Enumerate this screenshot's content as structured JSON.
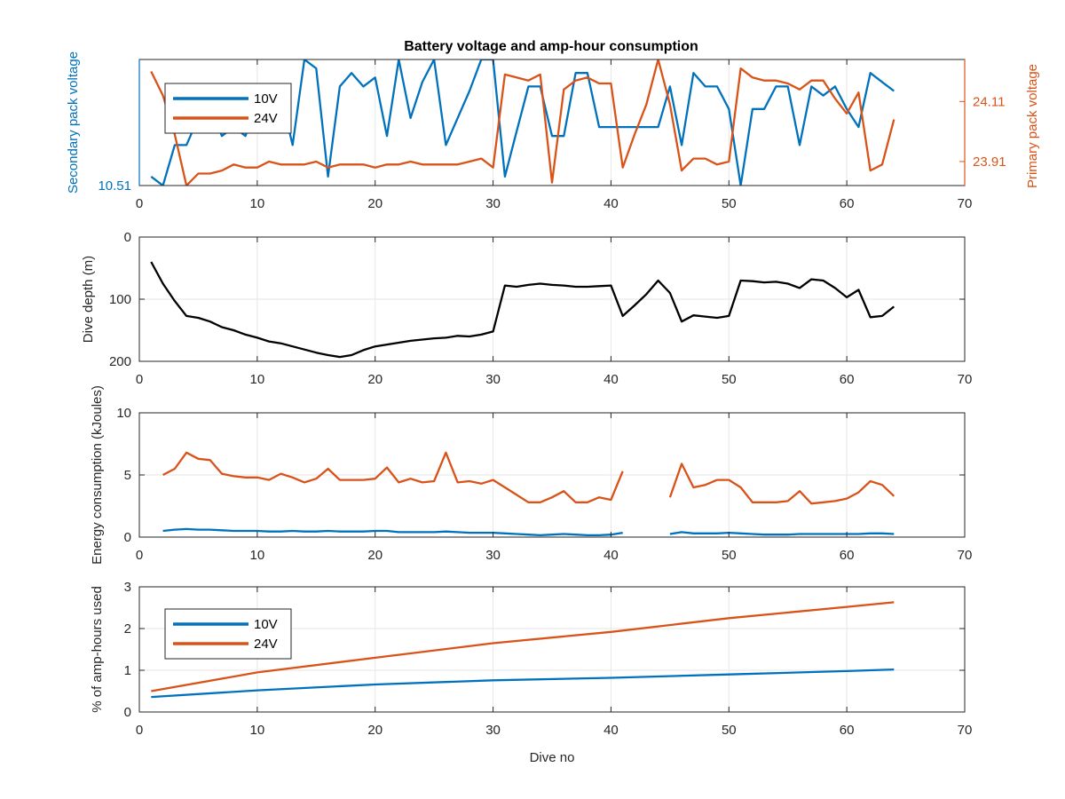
{
  "figure": {
    "title": "Battery voltage and amp-hour consumption"
  },
  "colors": {
    "blue": "#0072BD",
    "orange": "#D95319",
    "black": "#000000",
    "grid": "#e6e6e6",
    "axis": "#262626"
  },
  "chart_data": [
    {
      "type": "line",
      "title": "Battery voltage and amp-hour consumption",
      "xlabel": "",
      "ylabel": "Secondary pack voltage",
      "ylabel_right": "Primary pack voltage",
      "xlim": [
        0,
        70
      ],
      "xticks": [
        0,
        10,
        20,
        30,
        40,
        50,
        60,
        70
      ],
      "ylim_left": [
        10.51,
        10.79
      ],
      "yticks_left": [
        10.51
      ],
      "ylim_right": [
        23.83,
        24.25
      ],
      "yticks_right": [
        23.91,
        24.11
      ],
      "grid": true,
      "legend": {
        "position": "top-left",
        "entries": [
          "10V",
          "24V"
        ]
      },
      "series": [
        {
          "name": "10V",
          "axis": "left",
          "x": [
            1,
            2,
            3,
            4,
            5,
            6,
            7,
            8,
            9,
            10,
            11,
            12,
            13,
            14,
            15,
            16,
            17,
            18,
            19,
            20,
            21,
            22,
            23,
            24,
            25,
            26,
            27,
            28,
            29,
            30,
            31,
            32,
            33,
            34,
            35,
            36,
            37,
            38,
            39,
            40,
            41,
            42,
            43,
            44,
            45,
            46,
            47,
            48,
            49,
            50,
            51,
            52,
            53,
            54,
            55,
            56,
            57,
            58,
            59,
            60,
            61,
            62,
            63,
            64
          ],
          "y": [
            10.53,
            10.51,
            10.6,
            10.6,
            10.66,
            10.69,
            10.62,
            10.64,
            10.62,
            10.7,
            10.73,
            10.71,
            10.6,
            10.79,
            10.77,
            10.53,
            10.73,
            10.76,
            10.73,
            10.75,
            10.62,
            10.79,
            10.66,
            10.74,
            10.79,
            10.6,
            10.66,
            10.72,
            10.79,
            10.79,
            10.53,
            10.63,
            10.73,
            10.73,
            10.62,
            10.62,
            10.76,
            10.76,
            10.64,
            10.64,
            10.64,
            10.64,
            10.64,
            10.64,
            10.73,
            10.6,
            10.76,
            10.73,
            10.73,
            10.68,
            10.51,
            10.68,
            10.68,
            10.73,
            10.73,
            10.6,
            10.73,
            10.71,
            10.73,
            10.68,
            10.64,
            10.76,
            10.74,
            10.72
          ]
        },
        {
          "name": "24V",
          "axis": "right",
          "x": [
            1,
            2,
            3,
            4,
            5,
            6,
            7,
            8,
            9,
            10,
            11,
            12,
            13,
            14,
            15,
            16,
            17,
            18,
            19,
            20,
            21,
            22,
            23,
            24,
            25,
            26,
            27,
            28,
            29,
            30,
            31,
            32,
            33,
            34,
            35,
            36,
            37,
            38,
            39,
            40,
            41,
            42,
            43,
            44,
            45,
            46,
            47,
            48,
            49,
            50,
            51,
            52,
            53,
            54,
            55,
            56,
            57,
            58,
            59,
            60,
            61,
            62,
            63,
            64
          ],
          "y": [
            24.21,
            24.13,
            24.0,
            23.83,
            23.87,
            23.87,
            23.88,
            23.9,
            23.89,
            23.89,
            23.91,
            23.9,
            23.9,
            23.9,
            23.91,
            23.89,
            23.9,
            23.9,
            23.9,
            23.89,
            23.9,
            23.9,
            23.91,
            23.9,
            23.9,
            23.9,
            23.9,
            23.91,
            23.92,
            23.89,
            24.2,
            24.19,
            24.18,
            24.2,
            23.84,
            24.15,
            24.18,
            24.19,
            24.17,
            24.17,
            23.89,
            24.0,
            24.1,
            24.25,
            24.1,
            23.88,
            23.92,
            23.92,
            23.9,
            23.91,
            24.22,
            24.19,
            24.18,
            24.18,
            24.17,
            24.15,
            24.18,
            24.18,
            24.12,
            24.07,
            24.14,
            23.88,
            23.9,
            24.05
          ]
        }
      ]
    },
    {
      "type": "line",
      "xlabel": "",
      "ylabel": "Dive depth (m)",
      "xlim": [
        0,
        70
      ],
      "xticks": [
        0,
        10,
        20,
        30,
        40,
        50,
        60,
        70
      ],
      "ylim": [
        200,
        0
      ],
      "yticks": [
        0,
        100,
        200
      ],
      "y_reversed": true,
      "grid": true,
      "series": [
        {
          "x": [
            1,
            2,
            3,
            4,
            5,
            6,
            7,
            8,
            9,
            10,
            11,
            12,
            13,
            14,
            15,
            16,
            17,
            18,
            19,
            20,
            21,
            22,
            23,
            24,
            25,
            26,
            27,
            28,
            29,
            30,
            31,
            32,
            33,
            34,
            35,
            36,
            37,
            38,
            39,
            40,
            41,
            42,
            43,
            44,
            45,
            46,
            47,
            48,
            49,
            50,
            51,
            52,
            53,
            54,
            55,
            56,
            57,
            58,
            59,
            60,
            61,
            62,
            63,
            64
          ],
          "y": [
            40,
            75,
            103,
            127,
            130,
            136,
            145,
            150,
            157,
            162,
            168,
            171,
            176,
            181,
            186,
            190,
            193,
            190,
            182,
            176,
            173,
            170,
            167,
            165,
            163,
            162,
            159,
            160,
            157,
            152,
            78,
            80,
            77,
            75,
            77,
            78,
            80,
            80,
            79,
            78,
            127,
            110,
            92,
            70,
            90,
            136,
            126,
            128,
            130,
            127,
            70,
            71,
            73,
            72,
            75,
            82,
            68,
            70,
            82,
            97,
            85,
            129,
            127,
            112
          ]
        }
      ]
    },
    {
      "type": "line",
      "xlabel": "",
      "ylabel": "Energy consumption (kJoules)",
      "xlim": [
        0,
        70
      ],
      "xticks": [
        0,
        10,
        20,
        30,
        40,
        50,
        60,
        70
      ],
      "ylim": [
        0,
        10
      ],
      "yticks": [
        0,
        5,
        10
      ],
      "grid": true,
      "series": [
        {
          "name": "10V",
          "x": [
            2,
            3,
            4,
            5,
            6,
            7,
            8,
            9,
            10,
            11,
            12,
            13,
            14,
            15,
            16,
            17,
            18,
            19,
            20,
            21,
            22,
            23,
            24,
            25,
            26,
            27,
            28,
            29,
            30,
            31,
            32,
            33,
            34,
            35,
            36,
            37,
            38,
            39,
            40,
            41,
            null,
            45,
            46,
            47,
            48,
            49,
            50,
            51,
            52,
            53,
            54,
            55,
            56,
            57,
            58,
            59,
            60,
            61,
            62,
            63,
            64
          ],
          "y": [
            0.5,
            0.6,
            0.65,
            0.6,
            0.6,
            0.55,
            0.5,
            0.5,
            0.5,
            0.45,
            0.45,
            0.5,
            0.45,
            0.45,
            0.5,
            0.45,
            0.45,
            0.45,
            0.5,
            0.5,
            0.4,
            0.4,
            0.4,
            0.4,
            0.45,
            0.4,
            0.35,
            0.35,
            0.35,
            0.3,
            0.25,
            0.2,
            0.15,
            0.2,
            0.25,
            0.2,
            0.15,
            0.15,
            0.2,
            0.35,
            null,
            0.25,
            0.4,
            0.3,
            0.3,
            0.3,
            0.35,
            0.3,
            0.25,
            0.2,
            0.2,
            0.2,
            0.25,
            0.25,
            0.25,
            0.25,
            0.25,
            0.25,
            0.3,
            0.3,
            0.25
          ]
        },
        {
          "name": "24V",
          "x": [
            2,
            3,
            4,
            5,
            6,
            7,
            8,
            9,
            10,
            11,
            12,
            13,
            14,
            15,
            16,
            17,
            18,
            19,
            20,
            21,
            22,
            23,
            24,
            25,
            26,
            27,
            28,
            29,
            30,
            31,
            32,
            33,
            34,
            35,
            36,
            37,
            38,
            39,
            40,
            41,
            null,
            45,
            46,
            47,
            48,
            49,
            50,
            51,
            52,
            53,
            54,
            55,
            56,
            57,
            58,
            59,
            60,
            61,
            62,
            63,
            64
          ],
          "y": [
            5.0,
            5.5,
            6.8,
            6.3,
            6.2,
            5.1,
            4.9,
            4.8,
            4.8,
            4.6,
            5.1,
            4.8,
            4.4,
            4.7,
            5.5,
            4.6,
            4.6,
            4.6,
            4.7,
            5.6,
            4.4,
            4.7,
            4.4,
            4.5,
            6.8,
            4.4,
            4.5,
            4.3,
            4.6,
            4.0,
            3.4,
            2.8,
            2.8,
            3.2,
            3.7,
            2.8,
            2.8,
            3.2,
            3.0,
            5.3,
            null,
            3.2,
            5.9,
            4.0,
            4.2,
            4.6,
            4.6,
            4.0,
            2.8,
            2.8,
            2.8,
            2.9,
            3.7,
            2.7,
            2.8,
            2.9,
            3.1,
            3.6,
            4.5,
            4.2,
            3.3
          ]
        }
      ]
    },
    {
      "type": "line",
      "xlabel": "Dive no",
      "ylabel": "% of amp-hours used",
      "xlim": [
        0,
        70
      ],
      "xticks": [
        0,
        10,
        20,
        30,
        40,
        50,
        60,
        70
      ],
      "ylim": [
        0,
        3
      ],
      "yticks": [
        0,
        1,
        2,
        3
      ],
      "grid": true,
      "legend": {
        "position": "bottom-left",
        "entries": [
          "10V",
          "24V"
        ]
      },
      "series": [
        {
          "name": "10V",
          "x": [
            1,
            10,
            20,
            30,
            40,
            50,
            60,
            64
          ],
          "y": [
            0.36,
            0.52,
            0.66,
            0.76,
            0.82,
            0.9,
            0.98,
            1.02
          ]
        },
        {
          "name": "24V",
          "x": [
            1,
            10,
            20,
            30,
            40,
            50,
            60,
            64
          ],
          "y": [
            0.5,
            0.95,
            1.3,
            1.65,
            1.92,
            2.25,
            2.52,
            2.63
          ]
        }
      ]
    }
  ]
}
